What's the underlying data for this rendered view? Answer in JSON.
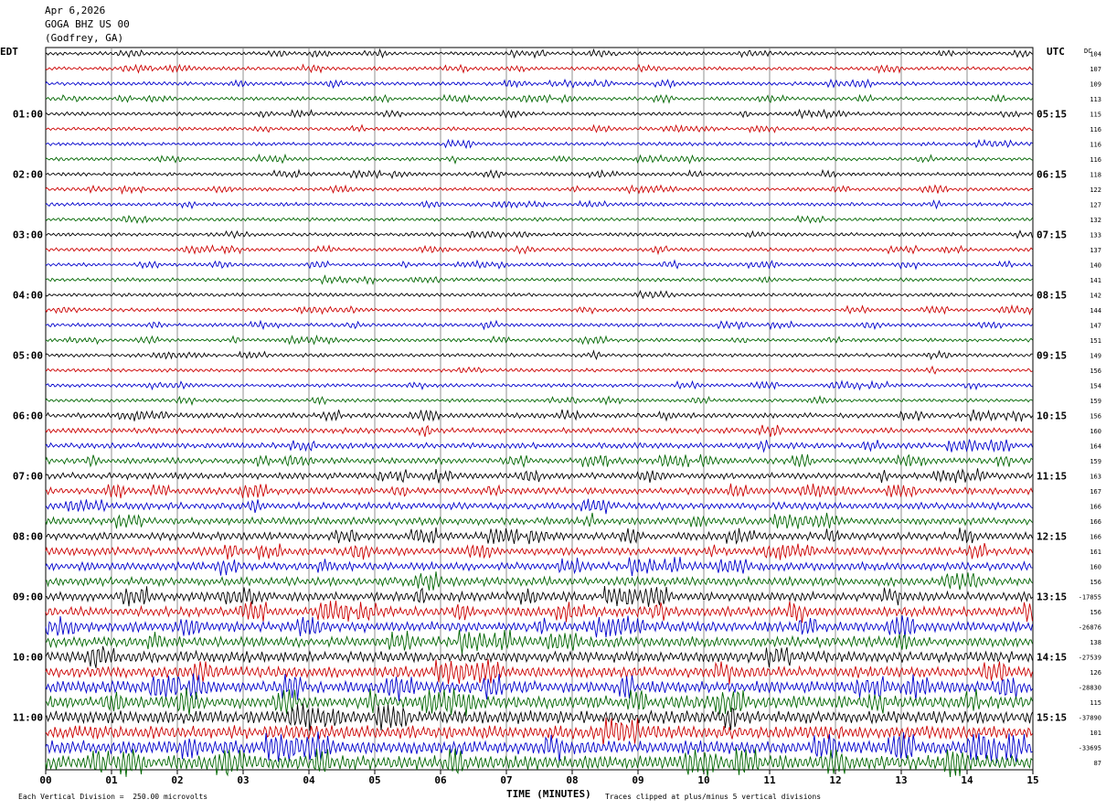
{
  "header": {
    "date": "Apr 6,2026",
    "station": "GOGA BHZ US 00",
    "location": "(Godfrey, GA)"
  },
  "left_tz": "EDT",
  "right_tz": "UTC",
  "dc_label": "DC",
  "footer": {
    "scale": "Each Vertical Division =  250.00 microvolts",
    "clip": "Traces clipped at plus/minus 5 vertical divisions",
    "xlabel": "TIME (MINUTES)"
  },
  "chart_data": {
    "type": "line",
    "title": "",
    "xlabel": "TIME (MINUTES)",
    "ylabel": "",
    "x_range": [
      0,
      15
    ],
    "x_ticks": [
      "00",
      "01",
      "02",
      "03",
      "04",
      "05",
      "06",
      "07",
      "08",
      "09",
      "10",
      "11",
      "12",
      "13",
      "14",
      "15"
    ],
    "trace_colors": [
      "#000000",
      "#cc0000",
      "#0000cc",
      "#006600"
    ],
    "trace_count": 48,
    "left_hour_labels": [
      "01:00",
      "02:00",
      "03:00",
      "04:00",
      "05:00",
      "06:00",
      "07:00",
      "08:00",
      "09:00",
      "10:00",
      "11:00"
    ],
    "right_hour_labels": [
      "05:15",
      "06:15",
      "07:15",
      "08:15",
      "09:15",
      "10:15",
      "11:15",
      "12:15",
      "13:15",
      "14:15",
      "15:15"
    ],
    "dc_offsets": [
      "104",
      "107",
      "109",
      "113",
      "115",
      "116",
      "116",
      "116",
      "118",
      "122",
      "127",
      "132",
      "133",
      "137",
      "140",
      "141",
      "142",
      "144",
      "147",
      "151",
      "149",
      "156",
      "154",
      "159",
      "156",
      "160",
      "164",
      "159",
      "163",
      "167",
      "166",
      "166",
      "166",
      "161",
      "160",
      "156",
      "-17855",
      "156",
      "-26876",
      "138",
      "-27539",
      "126",
      "-28830",
      "115",
      "-37890",
      "101",
      "-33695",
      "87"
    ],
    "grid": true
  }
}
